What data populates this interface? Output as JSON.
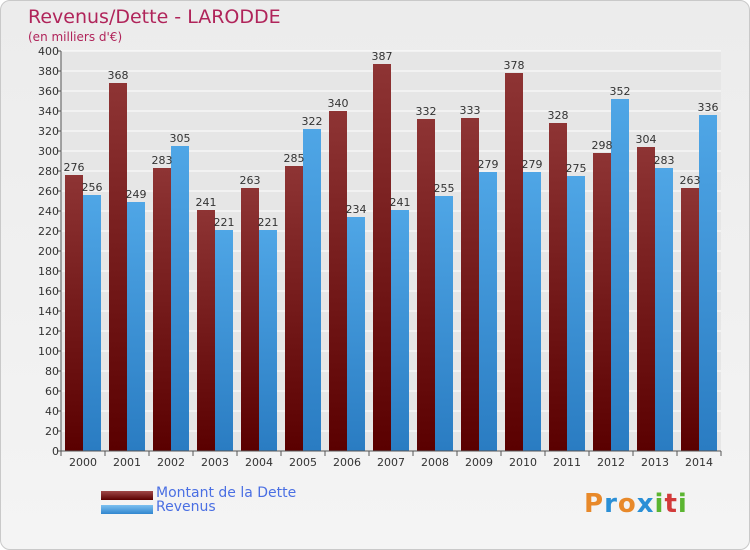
{
  "chart_data": {
    "type": "bar",
    "title": "Revenus/Dette - LARODDE",
    "subtitle": "(en milliers d'€)",
    "categories": [
      "2000",
      "2001",
      "2002",
      "2003",
      "2004",
      "2005",
      "2006",
      "2007",
      "2008",
      "2009",
      "2010",
      "2011",
      "2012",
      "2013",
      "2014"
    ],
    "series": [
      {
        "name": "Montant de la Dette",
        "color": "#7a1e1e",
        "values": [
          276,
          368,
          283,
          241,
          263,
          285,
          340,
          387,
          332,
          333,
          378,
          328,
          298,
          304,
          263
        ]
      },
      {
        "name": "Revenus",
        "color": "#3d93d9",
        "values": [
          256,
          249,
          305,
          221,
          221,
          322,
          234,
          241,
          255,
          279,
          279,
          275,
          352,
          283,
          336
        ]
      }
    ],
    "ylim": [
      0,
      400
    ],
    "ytick_step": 20,
    "grid": true,
    "legend_position": "bottom-left"
  },
  "logo": {
    "text": "Proxiti",
    "colors": [
      "#e8892a",
      "#2a8fd6",
      "#e8892a",
      "#2a8fd6",
      "#5bb531",
      "#d23a3a",
      "#5bb531"
    ]
  }
}
